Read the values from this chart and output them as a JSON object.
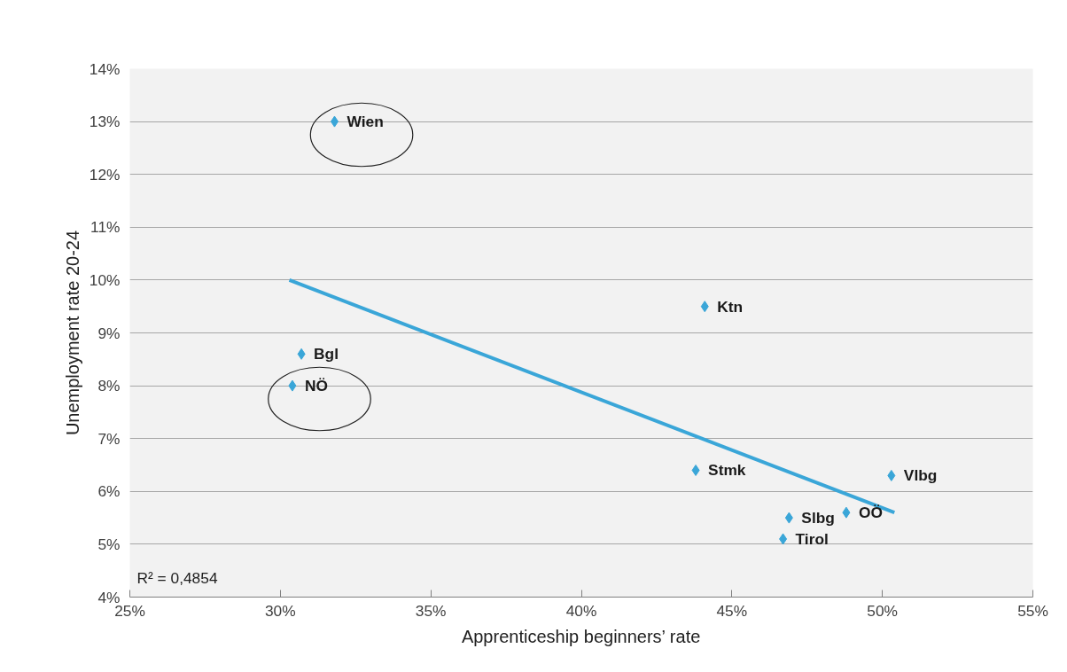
{
  "chart_data": {
    "type": "scatter",
    "xlabel": "Apprenticeship beginners’ rate",
    "ylabel": "Unemployment rate 20-24",
    "x": [
      31.8,
      30.7,
      30.4,
      44.1,
      43.8,
      50.3,
      46.9,
      48.8,
      46.7
    ],
    "series": [
      {
        "color": "#3aa6d8",
        "marker": "diamond",
        "values": [
          13.0,
          8.6,
          8.0,
          9.5,
          6.4,
          6.3,
          5.5,
          5.6,
          5.1
        ]
      },
      {
        "type": "line",
        "color": "#3aa6d8",
        "x": [
          30.3,
          50.4
        ],
        "values": [
          10.0,
          5.6
        ]
      }
    ],
    "xlim": [
      25,
      55
    ],
    "ylim": [
      4,
      14
    ],
    "xticks": [
      {
        "value": 25,
        "label": "25%"
      },
      {
        "value": 30,
        "label": "30%"
      },
      {
        "value": 35,
        "label": "35%"
      },
      {
        "value": 40,
        "label": "40%"
      },
      {
        "value": 45,
        "label": "45%"
      },
      {
        "value": 50,
        "label": "50%"
      },
      {
        "value": 55,
        "label": "55%"
      }
    ],
    "yticks": [
      {
        "value": 4,
        "label": "4%"
      },
      {
        "value": 5,
        "label": "5%"
      },
      {
        "value": 6,
        "label": "6%"
      },
      {
        "value": 7,
        "label": "7%"
      },
      {
        "value": 8,
        "label": "8%"
      },
      {
        "value": 9,
        "label": "9%"
      },
      {
        "value": 10,
        "label": "10%"
      },
      {
        "value": 11,
        "label": "11%"
      },
      {
        "value": 12,
        "label": "12%"
      },
      {
        "value": 13,
        "label": "13%"
      },
      {
        "value": 14,
        "label": "14%"
      }
    ],
    "grid": "y",
    "annotations": [
      {
        "text": "Wien",
        "x": 31.8,
        "y": 13.0
      },
      {
        "text": "Bgl",
        "x": 30.7,
        "y": 8.6
      },
      {
        "text": "NÖ",
        "x": 30.4,
        "y": 8.0
      },
      {
        "text": "Ktn",
        "x": 44.1,
        "y": 9.5
      },
      {
        "text": "Stmk",
        "x": 43.8,
        "y": 6.4
      },
      {
        "text": "Vlbg",
        "x": 50.3,
        "y": 6.3
      },
      {
        "text": "Slbg",
        "x": 46.9,
        "y": 5.5
      },
      {
        "text": "OÖ",
        "x": 48.8,
        "y": 5.6
      },
      {
        "text": "Tirol",
        "x": 46.7,
        "y": 5.1
      },
      "R² = 0,4854"
    ]
  }
}
